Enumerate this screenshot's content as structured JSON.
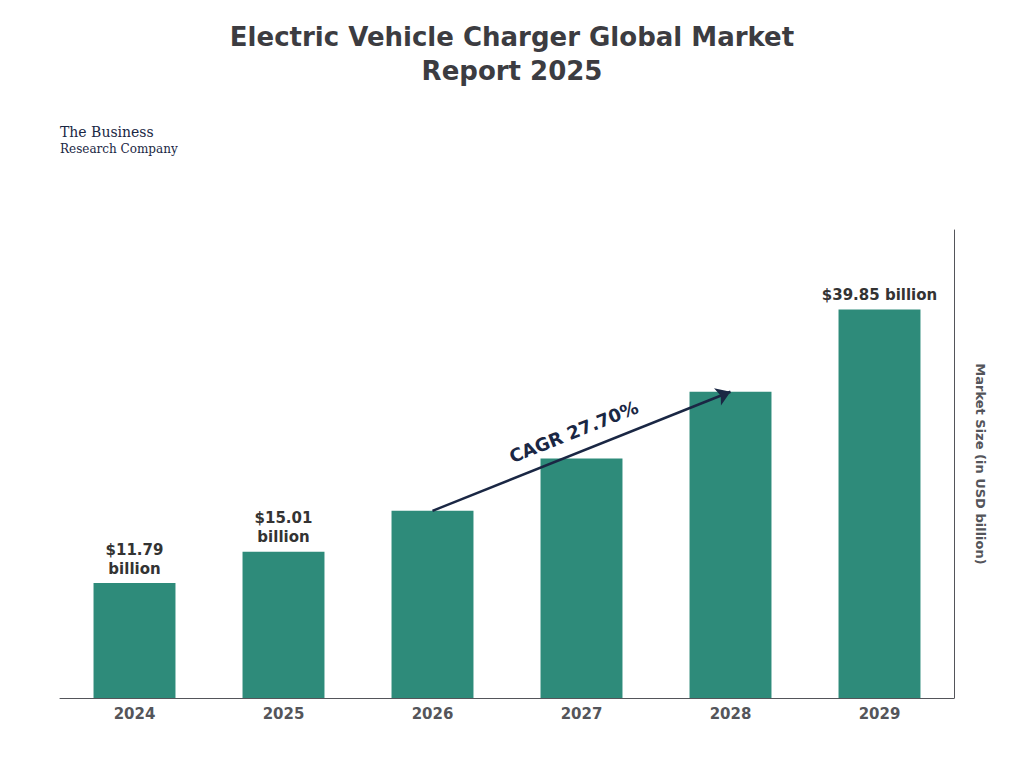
{
  "chart_data": {
    "type": "bar",
    "title": "Electric Vehicle Charger Global Market\nReport 2025",
    "categories": [
      "2024",
      "2025",
      "2026",
      "2027",
      "2028",
      "2029"
    ],
    "values": [
      11.79,
      15.01,
      19.2,
      24.56,
      31.41,
      39.85
    ],
    "color": "#2E8B7A",
    "ylabel": "Market Size (in USD billion)",
    "ylim": [
      0,
      48
    ],
    "yticks": [],
    "tick_labels": "x",
    "grid": false,
    "data_labels": true,
    "value_labels": [
      "$11.79\nbillion",
      "$15.01\nbillion",
      null,
      null,
      null,
      "$39.85 billion"
    ],
    "annotations": [
      {
        "text": "CAGR 27.70%"
      },
      {
        "text": "The Business"
      },
      {
        "text": "Research Company"
      }
    ]
  }
}
